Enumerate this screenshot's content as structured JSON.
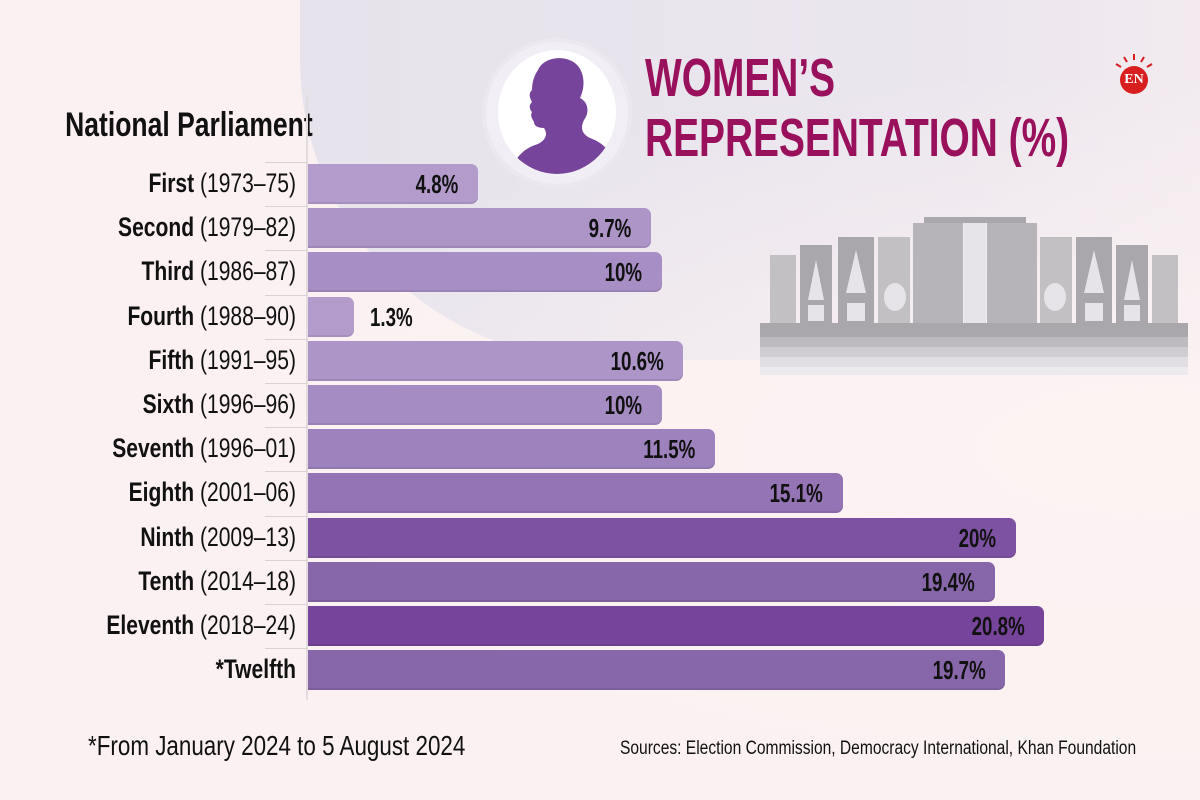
{
  "header": {
    "title_line1": "WOMEN’S",
    "title_line2": "REPRESENTATION (%)",
    "axis_header": "National Parliament",
    "logo_text": "EN"
  },
  "colors": {
    "title": "#99105c",
    "logo_red": "#d81e1e",
    "bar_light": "#b39ccc",
    "bar_dark": "#76449a"
  },
  "chart_data": {
    "type": "bar",
    "orientation": "horizontal",
    "title": "WOMEN’S REPRESENTATION (%)",
    "ylabel": "National Parliament",
    "xlabel": "",
    "categories": [
      {
        "name": "First",
        "years": "(1973–75)"
      },
      {
        "name": "Second",
        "years": "(1979–82)"
      },
      {
        "name": "Third",
        "years": "(1986–87)"
      },
      {
        "name": "Fourth",
        "years": "(1988–90)"
      },
      {
        "name": "Fifth",
        "years": "(1991–95)"
      },
      {
        "name": "Sixth",
        "years": "(1996–96)"
      },
      {
        "name": "Seventh",
        "years": "(1996–01)"
      },
      {
        "name": "Eighth",
        "years": "(2001–06)"
      },
      {
        "name": "Ninth",
        "years": "(2009–13)"
      },
      {
        "name": "Tenth",
        "years": "(2014–18)"
      },
      {
        "name": "Eleventh",
        "years": "(2018–24)"
      },
      {
        "name": "*Twelfth",
        "years": ""
      }
    ],
    "values": [
      4.8,
      9.7,
      10,
      1.3,
      10.6,
      10,
      11.5,
      15.1,
      20,
      19.4,
      20.8,
      19.7
    ],
    "labels": [
      "4.8%",
      "9.7%",
      "10%",
      "1.3%",
      "10.6%",
      "10%",
      "11.5%",
      "15.1%",
      "20%",
      "19.4%",
      "20.8%",
      "19.7%"
    ],
    "bar_colors": [
      "#b39ccc",
      "#ad95c8",
      "#a78ec4",
      "#b39ccc",
      "#ad95c8",
      "#a58cc2",
      "#9d82bd",
      "#9474b4",
      "#7e52a2",
      "#8767a9",
      "#76449a",
      "#8767a9"
    ],
    "xlim": [
      0,
      21
    ]
  },
  "footer": {
    "footnote": "*From January 2024 to 5 August 2024",
    "sources": "Sources: Election Commission, Democracy International, Khan Foundation"
  }
}
